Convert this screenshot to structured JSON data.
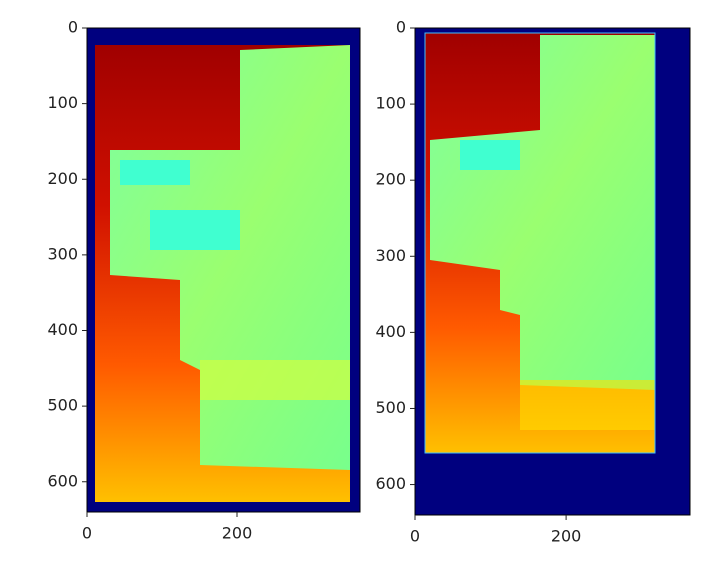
{
  "chart_data": [
    {
      "type": "image",
      "xlim": [
        0,
        364
      ],
      "ylim": [
        640,
        0
      ],
      "xticks": [
        0,
        200
      ],
      "yticks": [
        0,
        100,
        200,
        300,
        400,
        500,
        600
      ]
    },
    {
      "type": "image",
      "xlim": [
        0,
        364
      ],
      "ylim": [
        640,
        0
      ],
      "xticks": [
        0,
        200
      ],
      "yticks": [
        0,
        100,
        200,
        300,
        400,
        500,
        600
      ]
    }
  ]
}
